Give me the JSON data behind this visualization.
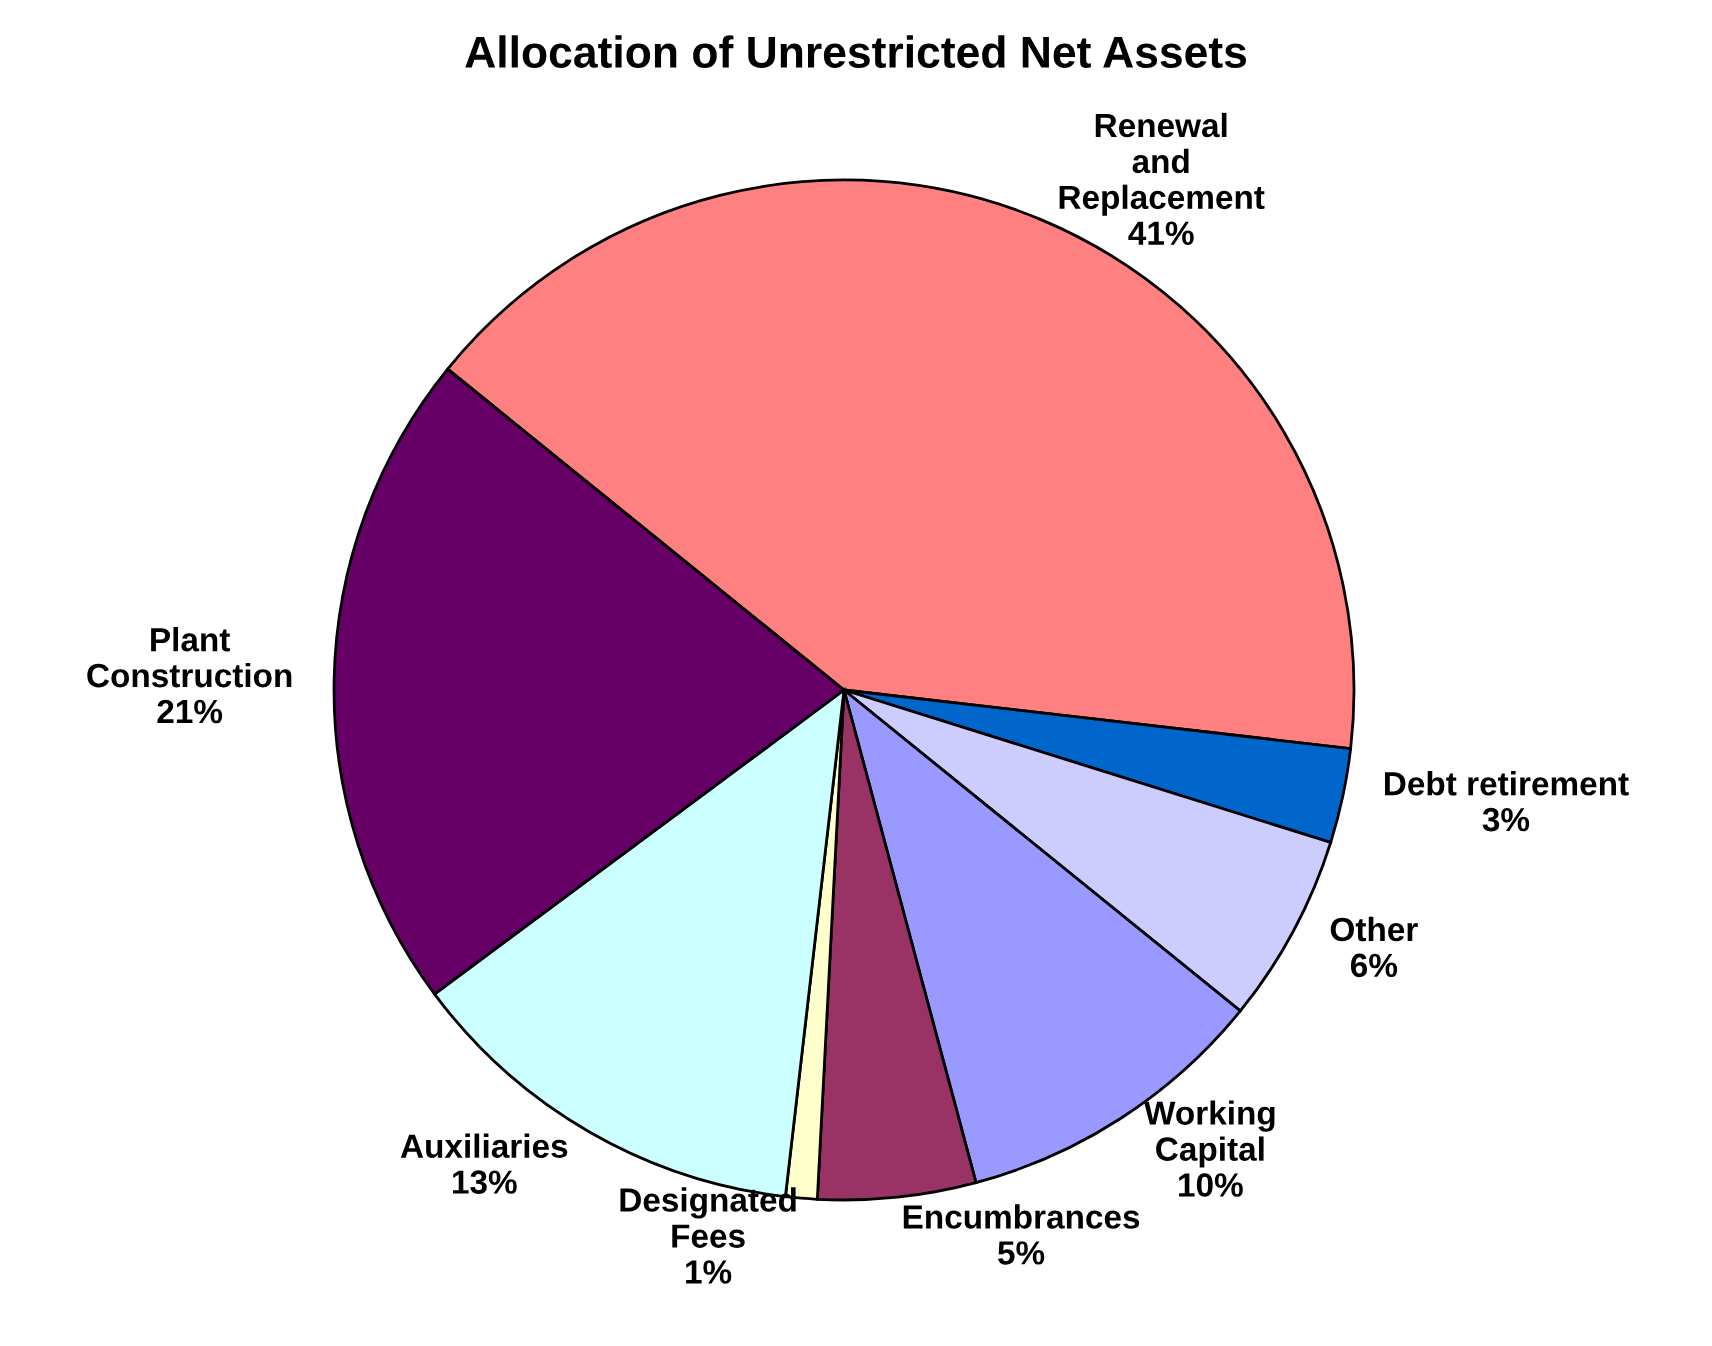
{
  "chart_data": {
    "type": "pie",
    "title": "Allocation of Unrestricted Net Assets",
    "categories": [
      "Renewal\nand\nReplacement",
      "Debt retirement",
      "Other",
      "Working\nCapital",
      "Encumbrances",
      "Designated\nFees",
      "Auxiliaries",
      "Plant\nConstruction"
    ],
    "values": [
      41,
      3,
      6,
      10,
      5,
      1,
      13,
      21
    ],
    "colors": [
      "#ff8080",
      "#0066cc",
      "#ccccff",
      "#9999ff",
      "#993366",
      "#ffffcc",
      "#ccffff",
      "#660066"
    ],
    "value_labels": [
      "41%",
      "3%",
      "6%",
      "10%",
      "5%",
      "1%",
      "13%",
      "21%"
    ]
  }
}
